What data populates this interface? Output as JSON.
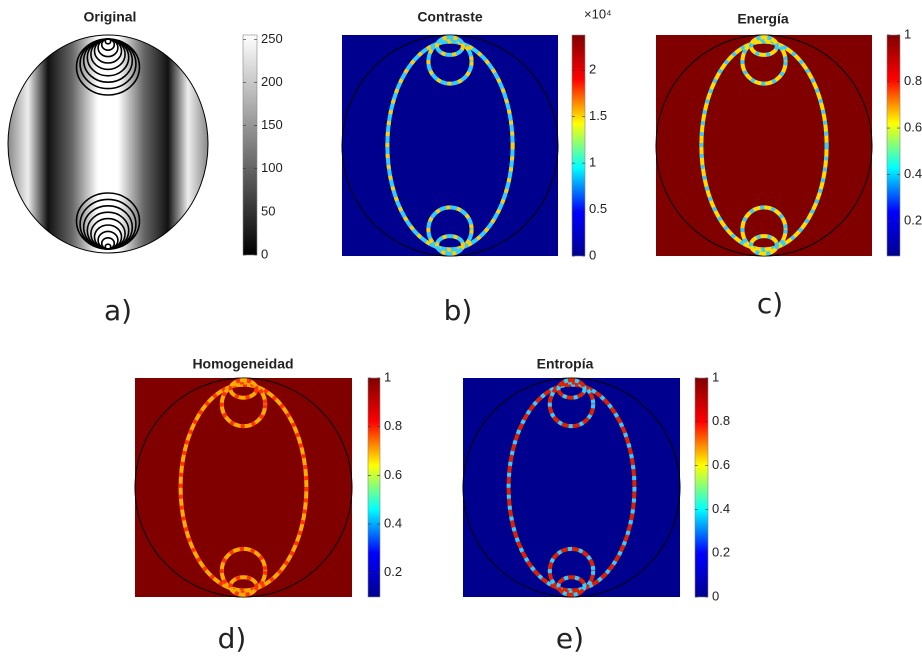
{
  "chart_data": [
    {
      "type": "heatmap",
      "title": "Original",
      "caption": "a)",
      "colormap": "gray",
      "clim": [
        0,
        255
      ],
      "cticks": [
        0,
        50,
        100,
        150,
        200,
        250
      ]
    },
    {
      "type": "heatmap",
      "title": "Contraste",
      "caption": "b)",
      "colormap": "jet",
      "background": "#00008f",
      "contour_colors": [
        "#33ccff",
        "#ffcc00"
      ],
      "clim": [
        0,
        2.38
      ],
      "cticks": [
        0,
        0.5,
        1,
        1.5,
        2
      ],
      "cmultiplier": "×10⁴"
    },
    {
      "type": "heatmap",
      "title": "Energía",
      "caption": "c)",
      "colormap": "jet",
      "background": "#800000",
      "contour_colors": [
        "#ffdd00",
        "#33ccff"
      ],
      "clim": [
        0.05,
        1
      ],
      "cticks": [
        0.2,
        0.4,
        0.6,
        0.8,
        1
      ]
    },
    {
      "type": "heatmap",
      "title": "Homogeneidad",
      "caption": "d)",
      "colormap": "jet",
      "background": "#800000",
      "contour_colors": [
        "#ffaa00",
        "#ff3300"
      ],
      "clim": [
        0.1,
        1
      ],
      "cticks": [
        0.2,
        0.4,
        0.6,
        0.8,
        1
      ]
    },
    {
      "type": "heatmap",
      "title": "Entropía",
      "caption": "e)",
      "colormap": "jet",
      "background": "#00008f",
      "contour_colors": [
        "#dd2200",
        "#33ccff"
      ],
      "clim": [
        0,
        1
      ],
      "cticks": [
        0,
        0.2,
        0.4,
        0.6,
        0.8,
        1
      ]
    }
  ]
}
